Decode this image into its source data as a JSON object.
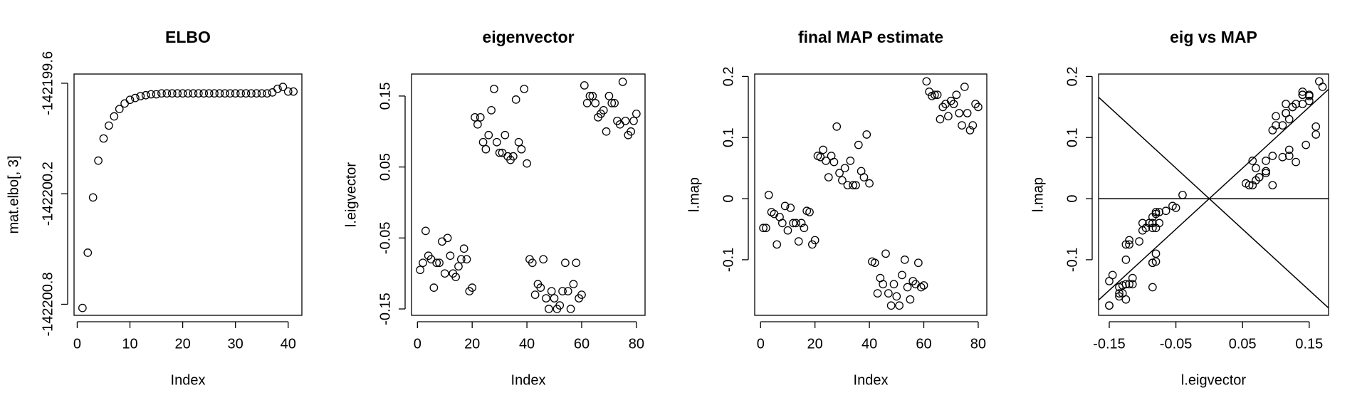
{
  "chart_data": [
    {
      "type": "scatter",
      "title": "ELBO",
      "x_label": "Index",
      "y_label": "mat.elbo[, 3]",
      "x": [
        1,
        2,
        3,
        4,
        5,
        6,
        7,
        8,
        9,
        10,
        11,
        12,
        13,
        14,
        15,
        16,
        17,
        18,
        19,
        20,
        21,
        22,
        23,
        24,
        25,
        26,
        27,
        28,
        29,
        30,
        31,
        32,
        33,
        34,
        35,
        36,
        37,
        38,
        39,
        40,
        41
      ],
      "values": [
        -142200.82,
        -142200.52,
        -142200.22,
        -142200.02,
        -142199.9,
        -142199.83,
        -142199.78,
        -142199.74,
        -142199.71,
        -142199.69,
        -142199.68,
        -142199.67,
        -142199.665,
        -142199.66,
        -142199.66,
        -142199.655,
        -142199.655,
        -142199.655,
        -142199.655,
        -142199.655,
        -142199.655,
        -142199.655,
        -142199.655,
        -142199.655,
        -142199.655,
        -142199.655,
        -142199.655,
        -142199.655,
        -142199.655,
        -142199.655,
        -142199.655,
        -142199.655,
        -142199.655,
        -142199.655,
        -142199.655,
        -142199.655,
        -142199.65,
        -142199.63,
        -142199.62,
        -142199.645,
        -142199.645
      ],
      "xlim": [
        -0.6,
        42.6
      ],
      "xticks": [
        0,
        10,
        20,
        30,
        40
      ],
      "ylim": [
        -142200.86,
        -142199.55
      ],
      "yticks": [
        -142200.8,
        -142200.2,
        -142199.6
      ],
      "color": "#000000"
    },
    {
      "type": "scatter",
      "title": "eigenvector",
      "x_label": "Index",
      "y_label": "l.eigvector",
      "x": [
        1,
        2,
        3,
        4,
        5,
        6,
        7,
        8,
        9,
        10,
        11,
        12,
        13,
        14,
        15,
        16,
        17,
        18,
        19,
        20,
        21,
        22,
        23,
        24,
        25,
        26,
        27,
        28,
        29,
        30,
        31,
        32,
        33,
        34,
        35,
        36,
        37,
        38,
        39,
        40,
        41,
        42,
        43,
        44,
        45,
        46,
        47,
        48,
        49,
        50,
        51,
        52,
        53,
        54,
        55,
        56,
        57,
        58,
        59,
        60,
        61,
        62,
        63,
        64,
        65,
        66,
        67,
        68,
        69,
        70,
        71,
        72,
        73,
        74,
        75,
        76,
        77,
        78,
        79,
        80
      ],
      "values": [
        -0.095,
        -0.085,
        -0.04,
        -0.075,
        -0.08,
        -0.12,
        -0.085,
        -0.085,
        -0.055,
        -0.1,
        -0.05,
        -0.075,
        -0.1,
        -0.105,
        -0.09,
        -0.08,
        -0.065,
        -0.08,
        -0.125,
        -0.12,
        0.12,
        0.11,
        0.12,
        0.085,
        0.075,
        0.095,
        0.13,
        0.16,
        0.085,
        0.07,
        0.07,
        0.095,
        0.065,
        0.06,
        0.065,
        0.145,
        0.085,
        0.075,
        0.16,
        0.055,
        -0.08,
        -0.085,
        -0.13,
        -0.115,
        -0.12,
        -0.08,
        -0.135,
        -0.15,
        -0.125,
        -0.135,
        -0.15,
        -0.145,
        -0.125,
        -0.085,
        -0.125,
        -0.15,
        -0.115,
        -0.085,
        -0.135,
        -0.13,
        0.165,
        0.14,
        0.15,
        0.15,
        0.14,
        0.12,
        0.125,
        0.13,
        0.1,
        0.15,
        0.14,
        0.14,
        0.115,
        0.11,
        0.17,
        0.115,
        0.095,
        0.1,
        0.115,
        0.125
      ],
      "xlim": [
        -2.16,
        83.16
      ],
      "xticks": [
        0,
        20,
        40,
        60,
        80
      ],
      "ylim": [
        -0.159,
        0.181
      ],
      "yticks": [
        -0.15,
        -0.05,
        0.05,
        0.15
      ],
      "color": "#000000"
    },
    {
      "type": "scatter",
      "title": "final MAP estimate",
      "x_label": "Index",
      "y_label": "l.map",
      "x": [
        1,
        2,
        3,
        4,
        5,
        6,
        7,
        8,
        9,
        10,
        11,
        12,
        13,
        14,
        15,
        16,
        17,
        18,
        19,
        20,
        21,
        22,
        23,
        24,
        25,
        26,
        27,
        28,
        29,
        30,
        31,
        32,
        33,
        34,
        35,
        36,
        37,
        38,
        39,
        40,
        41,
        42,
        43,
        44,
        45,
        46,
        47,
        48,
        49,
        50,
        51,
        52,
        53,
        54,
        55,
        56,
        57,
        58,
        59,
        60,
        61,
        62,
        63,
        64,
        65,
        66,
        67,
        68,
        69,
        70,
        71,
        72,
        73,
        74,
        75,
        76,
        77,
        78,
        79,
        80
      ],
      "values": [
        -0.048,
        -0.048,
        0.006,
        -0.022,
        -0.025,
        -0.075,
        -0.03,
        -0.04,
        -0.012,
        -0.052,
        -0.015,
        -0.04,
        -0.04,
        -0.07,
        -0.04,
        -0.048,
        -0.02,
        -0.022,
        -0.075,
        -0.068,
        0.07,
        0.068,
        0.08,
        0.062,
        0.035,
        0.07,
        0.06,
        0.118,
        0.042,
        0.03,
        0.05,
        0.022,
        0.062,
        0.022,
        0.022,
        0.088,
        0.045,
        0.035,
        0.105,
        0.025,
        -0.103,
        -0.105,
        -0.155,
        -0.13,
        -0.14,
        -0.09,
        -0.155,
        -0.175,
        -0.14,
        -0.16,
        -0.175,
        -0.125,
        -0.1,
        -0.145,
        -0.165,
        -0.135,
        -0.14,
        -0.105,
        -0.145,
        -0.142,
        0.192,
        0.175,
        0.168,
        0.17,
        0.17,
        0.13,
        0.15,
        0.155,
        0.135,
        0.16,
        0.155,
        0.17,
        0.14,
        0.12,
        0.183,
        0.14,
        0.112,
        0.12,
        0.155,
        0.15
      ],
      "xlim": [
        -2.16,
        83.16
      ],
      "xticks": [
        0,
        20,
        40,
        60,
        80
      ],
      "ylim": [
        -0.191,
        0.204
      ],
      "yticks": [
        -0.1,
        0,
        0.1,
        0.2
      ],
      "color": "#000000"
    },
    {
      "type": "scatter",
      "title": "eig vs MAP",
      "x_label": "l.eigvector",
      "y_label": "l.map",
      "x": [
        -0.095,
        -0.085,
        -0.04,
        -0.075,
        -0.08,
        -0.12,
        -0.085,
        -0.085,
        -0.055,
        -0.1,
        -0.05,
        -0.075,
        -0.1,
        -0.105,
        -0.09,
        -0.08,
        -0.065,
        -0.08,
        -0.125,
        -0.12,
        0.12,
        0.11,
        0.12,
        0.085,
        0.075,
        0.095,
        0.13,
        0.16,
        0.085,
        0.07,
        0.07,
        0.095,
        0.065,
        0.06,
        0.065,
        0.145,
        0.085,
        0.075,
        0.16,
        0.055,
        -0.08,
        -0.085,
        -0.13,
        -0.115,
        -0.12,
        -0.08,
        -0.135,
        -0.15,
        -0.125,
        -0.135,
        -0.15,
        -0.145,
        -0.125,
        -0.085,
        -0.125,
        -0.15,
        -0.115,
        -0.085,
        -0.135,
        -0.13,
        0.165,
        0.14,
        0.15,
        0.15,
        0.14,
        0.12,
        0.125,
        0.13,
        0.1,
        0.15,
        0.14,
        0.14,
        0.115,
        0.11,
        0.17,
        0.115,
        0.095,
        0.1,
        0.115,
        0.125
      ],
      "values": [
        -0.048,
        -0.048,
        0.006,
        -0.022,
        -0.025,
        -0.075,
        -0.03,
        -0.04,
        -0.012,
        -0.052,
        -0.015,
        -0.04,
        -0.04,
        -0.07,
        -0.04,
        -0.048,
        -0.02,
        -0.022,
        -0.075,
        -0.068,
        0.07,
        0.068,
        0.08,
        0.062,
        0.035,
        0.07,
        0.06,
        0.118,
        0.042,
        0.03,
        0.05,
        0.022,
        0.062,
        0.022,
        0.022,
        0.088,
        0.045,
        0.035,
        0.105,
        0.025,
        -0.103,
        -0.105,
        -0.155,
        -0.13,
        -0.14,
        -0.09,
        -0.155,
        -0.175,
        -0.14,
        -0.16,
        -0.175,
        -0.125,
        -0.1,
        -0.145,
        -0.165,
        -0.135,
        -0.14,
        -0.105,
        -0.145,
        -0.142,
        0.192,
        0.175,
        0.168,
        0.17,
        0.17,
        0.13,
        0.15,
        0.155,
        0.135,
        0.16,
        0.155,
        0.17,
        0.14,
        0.12,
        0.183,
        0.14,
        0.112,
        0.12,
        0.155,
        0.15
      ],
      "xlim": [
        -0.166,
        0.179
      ],
      "xticks": [
        -0.15,
        -0.05,
        0.05,
        0.15
      ],
      "ylim": [
        -0.191,
        0.204
      ],
      "yticks": [
        -0.1,
        0,
        0.1,
        0.2
      ],
      "color": "#000000",
      "reference_lines": [
        {
          "intercept": 0,
          "slope": 1
        },
        {
          "intercept": 0,
          "slope": -1
        },
        {
          "intercept": 0,
          "slope": 0
        }
      ]
    }
  ]
}
